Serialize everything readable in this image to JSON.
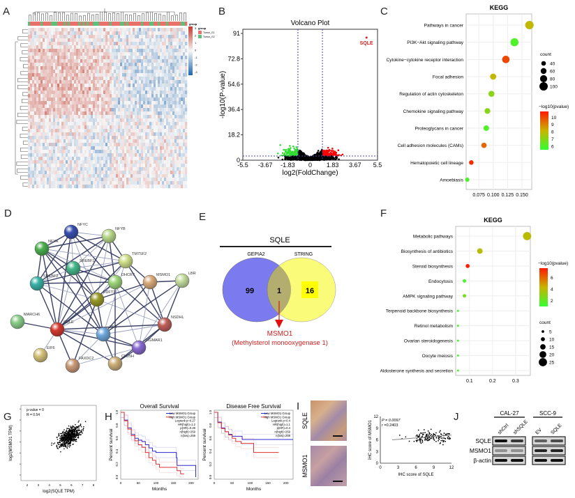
{
  "panel_labels": [
    "A",
    "B",
    "C",
    "D",
    "E",
    "F",
    "G",
    "H",
    "I",
    "J"
  ],
  "heatmap": {
    "legend_ticks": [
      "3",
      "2",
      "1",
      "0",
      "-1",
      "-2",
      "-3"
    ],
    "group_title": "group",
    "groups": [
      {
        "name": "Tumor_G1",
        "color": "#e8716b"
      },
      {
        "name": "Tumor_G2",
        "color": "#5fbf7a"
      }
    ],
    "colors": {
      "high": "#c0392b",
      "mid": "#f7f7f7",
      "low": "#2166ac"
    }
  },
  "network": {
    "nodes": [
      {
        "name": "NFYC",
        "color": "#3a4fb0"
      },
      {
        "name": "NFYB",
        "color": "#b8d98a"
      },
      {
        "name": "NFYA",
        "color": "#4caf50"
      },
      {
        "name": "TM7SF2",
        "color": "#cfe08a"
      },
      {
        "name": "SREBF1",
        "color": "#45b88a"
      },
      {
        "name": "SREBF2",
        "color": "#3bb3a8"
      },
      {
        "name": "DHCR7",
        "color": "#9ed67a"
      },
      {
        "name": "MSMO1",
        "color": "#d9aa7a"
      },
      {
        "name": "LBR",
        "color": "#c6dda0"
      },
      {
        "name": "FDFT1",
        "color": "#9a9a2a"
      },
      {
        "name": "MARCH6",
        "color": "#8ccf8a"
      },
      {
        "name": "SQLE",
        "color": "#d43a2f"
      },
      {
        "name": "LSS",
        "color": "#6fa8dc"
      },
      {
        "name": "NSDHL",
        "color": "#c0605a"
      },
      {
        "name": "SIGMAR1",
        "color": "#8a6ad0"
      },
      {
        "name": "EIF6",
        "color": "#d6c27a"
      },
      {
        "name": "FAXDC2",
        "color": "#c99a78"
      },
      {
        "name": "CH25H",
        "color": "#cdb07a"
      }
    ]
  },
  "venn": {
    "title": "SQLE",
    "left_label": "GEPIA2",
    "right_label": "STRING",
    "left_only": "99",
    "overlap": "1",
    "right_only": "16",
    "result_gene": "MSMO1",
    "result_name": "(Methylsterol monooxygenase 1)",
    "colors": {
      "left": "#7b7bef",
      "right": "#fbfb7a",
      "overlap": "#b3ae70",
      "arrow": "#e01010"
    }
  },
  "ihc": {
    "row_labels": [
      "SQLE",
      "MSMO1"
    ]
  },
  "western": {
    "groups": [
      "CAL-27",
      "SCC-9"
    ],
    "lanes": [
      "shCtrl",
      "shSQLE",
      "EV",
      "SQLE"
    ],
    "rows": [
      "SQLE",
      "MSMO1",
      "β-actin"
    ]
  },
  "chart_data": [
    {
      "id": "B",
      "type": "scatter",
      "title": "Volcano Plot",
      "xlabel": "log2(FoldChange)",
      "ylabel": "-log10(P-value)",
      "xlim": [
        -5.5,
        5.5
      ],
      "ylim": [
        0,
        91
      ],
      "xticks": [
        "-5.5",
        "-3.67",
        "-1.83",
        "0",
        "1.83",
        "3.67",
        "5.5"
      ],
      "yticks": [
        "0",
        "18.2",
        "36.4",
        "54.6",
        "72.8",
        "91"
      ],
      "fc_threshold": 1,
      "p_threshold_line": 3,
      "annotation": {
        "label": "SQLE",
        "x": 4.6,
        "y": 88
      },
      "colors": {
        "up": "#ff0000",
        "down": "#33dd33",
        "ns": "#000000"
      }
    },
    {
      "id": "C",
      "type": "scatter",
      "title": "KEGG",
      "xlim": [
        0.053,
        0.167
      ],
      "xticks": [
        "0.075",
        "0.100",
        "0.125",
        "0.150"
      ],
      "categories": [
        "Pathways in cancer",
        "PI3K−Akt signaling pathway",
        "Cytokine−cytokine receptor interaction",
        "Focal adhesion",
        "Regulation of actin cytoskeleton",
        "Chemokine signaling pathway",
        "Proteoglycans in cancer",
        "Cell adhesion molecules (CAMs)",
        "Hematopoietic cell lineage",
        "Amoebiasis"
      ],
      "x": [
        0.163,
        0.137,
        0.122,
        0.1,
        0.097,
        0.09,
        0.088,
        0.084,
        0.062,
        0.055
      ],
      "count": [
        100,
        95,
        85,
        65,
        62,
        58,
        55,
        52,
        40,
        35
      ],
      "neglog10p": [
        8,
        6,
        10,
        8,
        7,
        7,
        6,
        9.5,
        10.5,
        6
      ],
      "size_legend": {
        "title": "count",
        "values": [
          "40",
          "60",
          "80",
          "100"
        ]
      },
      "color_legend": {
        "title": "−log10(pvalue)",
        "range": [
          5.5,
          10.8
        ],
        "ticks": [
          "10",
          "9",
          "8",
          "7",
          "6"
        ],
        "low": "#33ff33",
        "high": "#ff2a00"
      }
    },
    {
      "id": "F",
      "type": "scatter",
      "title": "KEGG",
      "xlim": [
        0.04,
        0.364
      ],
      "xticks": [
        "0.1",
        "0.2",
        "0.3"
      ],
      "categories": [
        "Metabolic pathways",
        "Biosynthesis of antibiotics",
        "Steroid biosynthesis",
        "Endocytosis",
        "AMPK signaling pathway",
        "Terpenoid backbone biosynthesis",
        "Retinol metabolism",
        "Ovarian steroidogenesis",
        "Oocyte meiosis",
        "Aldosterone synthesis and secretion"
      ],
      "x": [
        0.35,
        0.145,
        0.092,
        0.078,
        0.078,
        0.05,
        0.05,
        0.05,
        0.05,
        0.05
      ],
      "count": [
        25,
        15,
        10,
        8,
        8,
        3,
        3,
        3,
        3,
        3
      ],
      "neglog10p": [
        4,
        4,
        7.5,
        1.5,
        2.5,
        1.5,
        1.5,
        1.5,
        1.5,
        1.5
      ],
      "size_legend": {
        "title": "count",
        "values": [
          "5",
          "10",
          "15",
          "20",
          "25"
        ]
      },
      "color_legend": {
        "title": "−log10(pvalue)",
        "range": [
          1,
          7.6
        ],
        "ticks": [
          "6",
          "4",
          "2"
        ],
        "low": "#33ff33",
        "high": "#ff2a00"
      }
    },
    {
      "id": "G",
      "type": "scatter",
      "xlabel": "log2(SQLE TPM)",
      "ylabel": "log2(MSMO1 TPM)",
      "xticks": [
        "2",
        "3",
        "4",
        "5",
        "6",
        "7",
        "8"
      ],
      "annotation": [
        "p-value = 0",
        "R = 0.54"
      ]
    },
    {
      "id": "H1",
      "type": "line",
      "title": "Overall Survival",
      "xlabel": "Months",
      "ylabel": "Percent survival",
      "xlim": [
        0,
        220
      ],
      "ylim": [
        0,
        1
      ],
      "xticks": [
        "0",
        "50",
        "100",
        "150",
        "200"
      ],
      "yticks": [
        "0.0",
        "0.2",
        "0.4",
        "0.6",
        "0.8",
        "1.0"
      ],
      "legend": [
        "Low MSMO1 Group",
        "High MSMO1 Group",
        "Logrank p=0.27",
        "HR(high)=1.2",
        "p(HR)=0.28",
        "n(high)=259",
        "n(low)=259"
      ],
      "series": [
        {
          "name": "Low MSMO1 Group",
          "color": "#2a2ad0",
          "points": [
            [
              0,
              1
            ],
            [
              10,
              0.88
            ],
            [
              20,
              0.76
            ],
            [
              30,
              0.66
            ],
            [
              40,
              0.6
            ],
            [
              50,
              0.57
            ],
            [
              60,
              0.55
            ],
            [
              70,
              0.5
            ],
            [
              80,
              0.45
            ],
            [
              90,
              0.4
            ],
            [
              100,
              0.38
            ],
            [
              155,
              0.38
            ],
            [
              158,
              0.3
            ],
            [
              160,
              0.18
            ],
            [
              212,
              0.18
            ],
            [
              213,
              0
            ]
          ]
        },
        {
          "name": "High MSMO1 Group",
          "color": "#e03030",
          "points": [
            [
              0,
              1
            ],
            [
              10,
              0.87
            ],
            [
              20,
              0.74
            ],
            [
              30,
              0.64
            ],
            [
              40,
              0.56
            ],
            [
              50,
              0.5
            ],
            [
              60,
              0.46
            ],
            [
              70,
              0.38
            ],
            [
              80,
              0.3
            ],
            [
              90,
              0.26
            ],
            [
              100,
              0.2
            ],
            [
              110,
              0.15
            ],
            [
              150,
              0.15
            ],
            [
              160,
              0.1
            ],
            [
              170,
              0.05
            ],
            [
              180,
              0.05
            ]
          ]
        }
      ]
    },
    {
      "id": "H2",
      "type": "line",
      "title": "Disease Free Survival",
      "xlabel": "Months",
      "ylabel": "Percent survival",
      "xlim": [
        0,
        220
      ],
      "ylim": [
        0,
        1
      ],
      "xticks": [
        "0",
        "50",
        "100",
        "150",
        "200"
      ],
      "yticks": [
        "0.0",
        "0.2",
        "0.4",
        "0.6",
        "0.8",
        "1.0"
      ],
      "legend": [
        "Low MSMO1 Group",
        "High MSMO1 Group",
        "Logrank p=0.4",
        "HR(high)=1.1",
        "p(HR)=0.4",
        "n(high)=259",
        "n(low)=259"
      ],
      "series": [
        {
          "name": "Low MSMO1 Group",
          "color": "#2a2ad0",
          "points": [
            [
              0,
              1
            ],
            [
              10,
              0.85
            ],
            [
              20,
              0.76
            ],
            [
              30,
              0.7
            ],
            [
              40,
              0.66
            ],
            [
              50,
              0.63
            ],
            [
              75,
              0.63
            ],
            [
              78,
              0.58
            ],
            [
              220,
              0.58
            ]
          ]
        },
        {
          "name": "High MSMO1 Group",
          "color": "#e03030",
          "points": [
            [
              0,
              1
            ],
            [
              10,
              0.84
            ],
            [
              20,
              0.75
            ],
            [
              30,
              0.7
            ],
            [
              40,
              0.65
            ],
            [
              50,
              0.6
            ],
            [
              60,
              0.55
            ],
            [
              75,
              0.52
            ],
            [
              108,
              0.52
            ],
            [
              110,
              0.38
            ],
            [
              180,
              0.38
            ]
          ]
        }
      ]
    },
    {
      "id": "I",
      "type": "scatter",
      "xlabel": "IHC score of SQLE",
      "ylabel": "IHC score of MSMO1",
      "xlim": [
        0,
        12
      ],
      "ylim": [
        0,
        12
      ],
      "xticks": [
        "0",
        "3",
        "6",
        "9",
        "12"
      ],
      "yticks": [
        "0",
        "3",
        "6",
        "9",
        "12"
      ],
      "annotation": [
        "P = 0.0097",
        "r =0.2403"
      ],
      "fit_line": [
        [
          2,
          6.0
        ],
        [
          12,
          7.2
        ]
      ]
    }
  ]
}
